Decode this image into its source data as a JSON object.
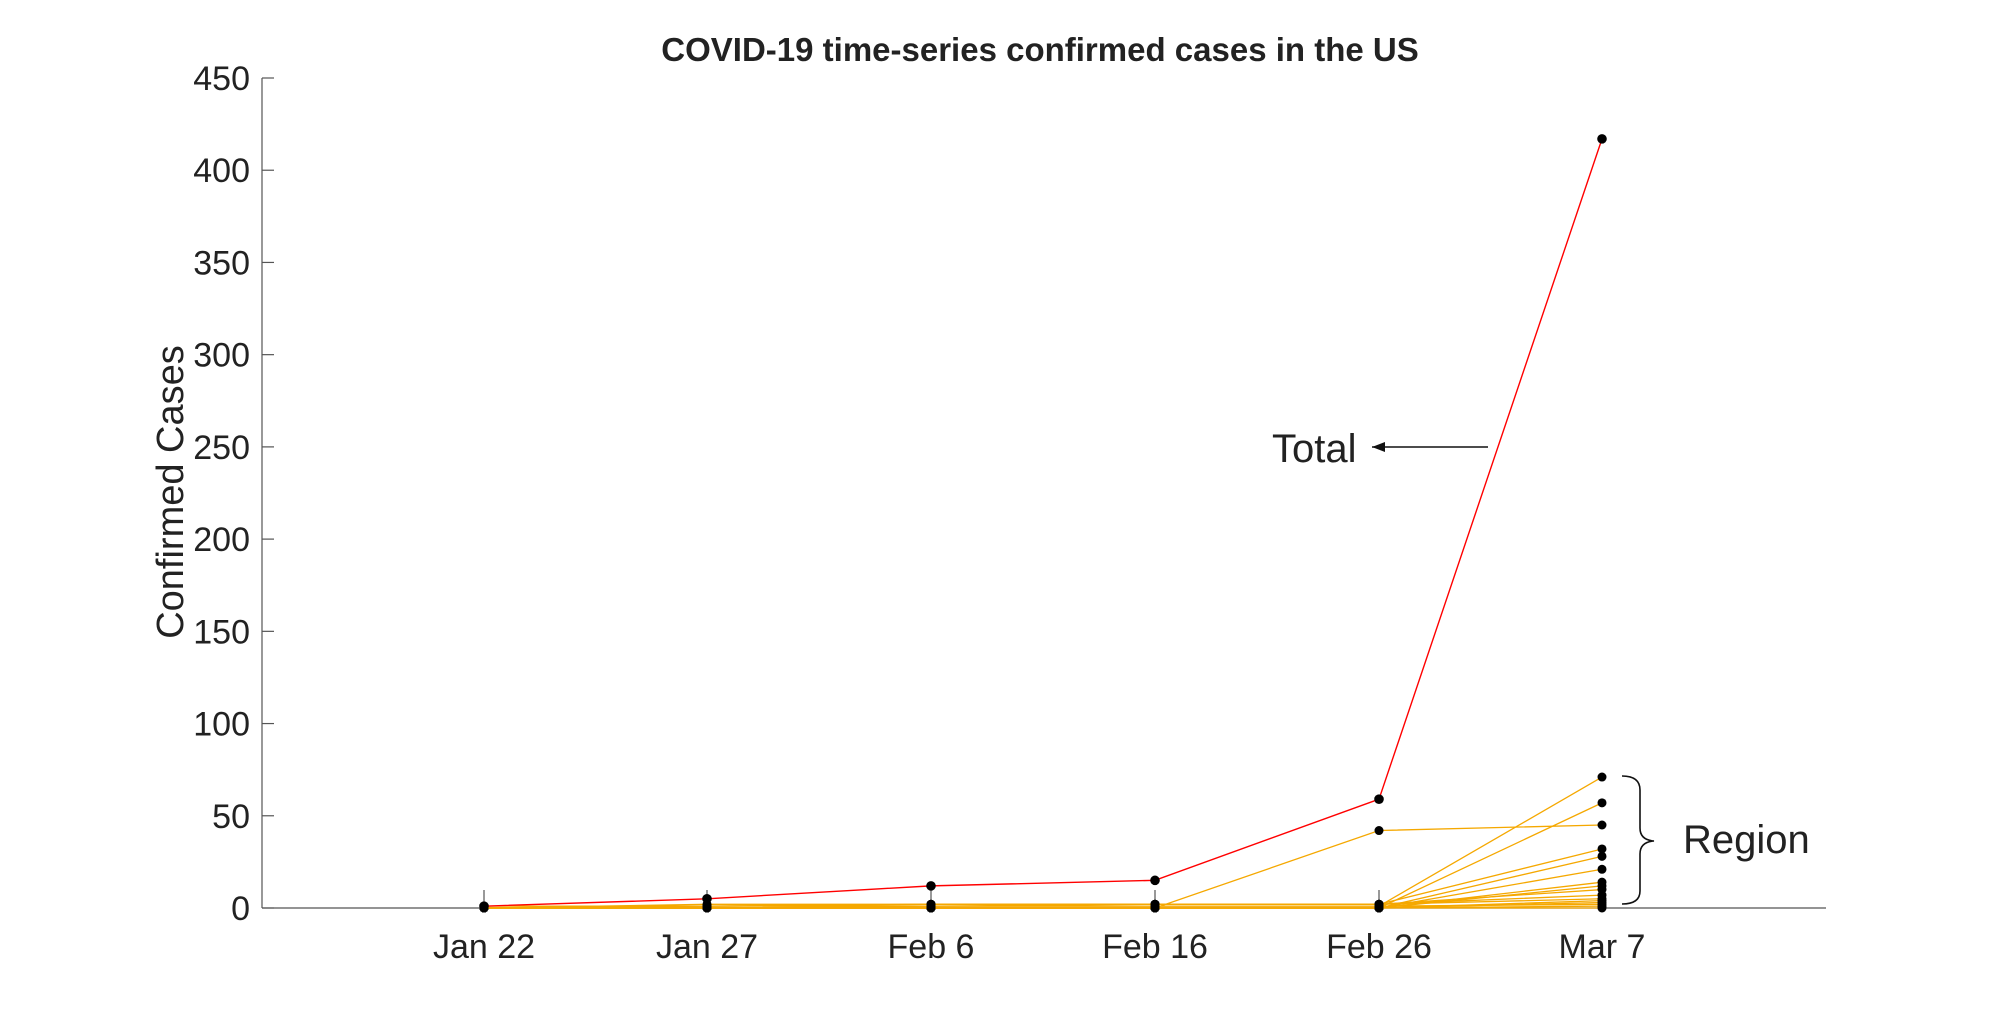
{
  "chart_data": {
    "type": "line",
    "title": "COVID-19 time-series confirmed cases in the US",
    "xlabel": "",
    "ylabel": "Confirmed Cases",
    "x": [
      "Jan 22",
      "Jan 27",
      "Feb 6",
      "Feb 16",
      "Feb 26",
      "Mar 7"
    ],
    "ylim": [
      0,
      450
    ],
    "yticks": [
      0,
      50,
      100,
      150,
      200,
      250,
      300,
      350,
      400,
      450
    ],
    "grid": false,
    "total": {
      "name": "Total",
      "color": "#ff0000",
      "values": [
        1,
        5,
        12,
        15,
        59,
        417
      ]
    },
    "regions": {
      "name": "Region",
      "color": "#f5a800",
      "series": [
        [
          1,
          1,
          1,
          1,
          1,
          71
        ],
        [
          0,
          0,
          0,
          0,
          0,
          57
        ],
        [
          0,
          0,
          0,
          0,
          42,
          45
        ],
        [
          0,
          1,
          2,
          2,
          2,
          32
        ],
        [
          0,
          0,
          0,
          0,
          0,
          28
        ],
        [
          0,
          0,
          0,
          0,
          0,
          21
        ],
        [
          0,
          0,
          0,
          0,
          0,
          14
        ],
        [
          0,
          0,
          0,
          0,
          0,
          12
        ],
        [
          0,
          2,
          2,
          2,
          2,
          10
        ],
        [
          0,
          1,
          2,
          2,
          2,
          7
        ],
        [
          0,
          0,
          1,
          2,
          2,
          5
        ],
        [
          0,
          0,
          0,
          0,
          0,
          4
        ],
        [
          0,
          0,
          0,
          0,
          0,
          3
        ],
        [
          0,
          0,
          1,
          1,
          1,
          2
        ],
        [
          0,
          0,
          0,
          0,
          0,
          1
        ],
        [
          0,
          0,
          0,
          0,
          0,
          0
        ]
      ]
    },
    "annotations": {
      "total_label": "Total",
      "region_label": "Region"
    }
  }
}
